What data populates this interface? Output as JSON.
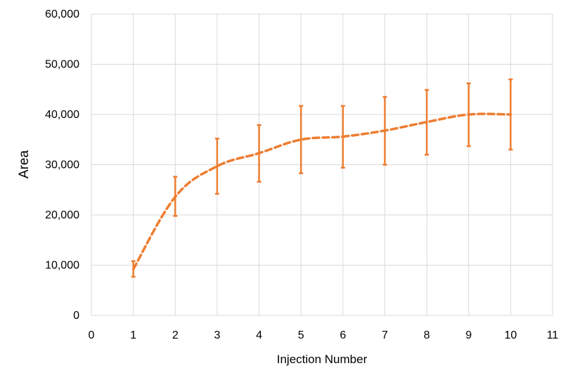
{
  "chart_data": {
    "type": "line",
    "title": "",
    "xlabel": "Injection Number",
    "ylabel": "Area",
    "xlim": [
      0,
      11
    ],
    "ylim": [
      0,
      60000
    ],
    "x_ticks": [
      0,
      1,
      2,
      3,
      4,
      5,
      6,
      7,
      8,
      9,
      10,
      11
    ],
    "y_ticks": [
      0,
      10000,
      20000,
      30000,
      40000,
      50000,
      60000
    ],
    "x_tick_labels": [
      "0",
      "1",
      "2",
      "3",
      "4",
      "5",
      "6",
      "7",
      "8",
      "9",
      "10",
      "11"
    ],
    "y_tick_labels": [
      "0",
      "10,000",
      "20,000",
      "30,000",
      "40,000",
      "50,000",
      "60,000"
    ],
    "grid": "vertical and horizontal",
    "legend": "none",
    "series": [
      {
        "line_style": "dashed",
        "color": "#ed7d31",
        "x": [
          1,
          2,
          3,
          4,
          5,
          6,
          7,
          8,
          9,
          10
        ],
        "y": [
          9200,
          23600,
          29700,
          32300,
          35000,
          35600,
          36800,
          38500,
          40000,
          40000
        ],
        "error_low": [
          7700,
          19800,
          24200,
          26600,
          28300,
          29400,
          30000,
          32000,
          33700,
          33000
        ],
        "error_high": [
          10800,
          27600,
          35200,
          37900,
          41700,
          41700,
          43500,
          44900,
          46200,
          47000
        ]
      }
    ]
  }
}
